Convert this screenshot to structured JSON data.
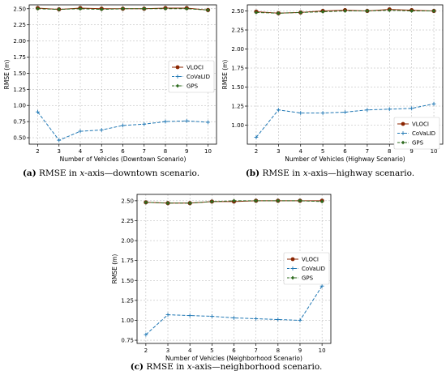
{
  "chart_data": [
    {
      "type": "line",
      "x": [
        2,
        3,
        4,
        5,
        6,
        7,
        8,
        9,
        10
      ],
      "xlabel": "Number of Vehicles (Downtown Scenario)",
      "ylabel": "RMSE (m)",
      "xlim": [
        1.6,
        10.4
      ],
      "ylim": [
        0.4,
        2.56
      ],
      "yticks": [
        "0.50",
        "0.75",
        "1.00",
        "1.25",
        "1.50",
        "1.75",
        "2.00",
        "2.25",
        "2.50"
      ],
      "grid": true,
      "legend_position": "center-right",
      "series": [
        {
          "name": "VLOCI",
          "color": "#8b2500",
          "marker": "circle",
          "values": [
            2.51,
            2.49,
            2.51,
            2.5,
            2.5,
            2.5,
            2.51,
            2.51,
            2.48
          ]
        },
        {
          "name": "CoVaLID",
          "color": "#1f77b4",
          "marker": "plus",
          "style": "dashed",
          "values": [
            0.9,
            0.46,
            0.6,
            0.62,
            0.69,
            0.71,
            0.75,
            0.76,
            0.74
          ]
        },
        {
          "name": "GPS",
          "color": "#2e6b1f",
          "marker": "diamond",
          "style": "dashed",
          "values": [
            2.5,
            2.49,
            2.5,
            2.49,
            2.5,
            2.5,
            2.5,
            2.5,
            2.48
          ]
        }
      ],
      "caption": {
        "label": "(a)",
        "pre": " RMSE in ",
        "var": "x",
        "post": "-axis—downtown scenario."
      }
    },
    {
      "type": "line",
      "x": [
        2,
        3,
        4,
        5,
        6,
        7,
        8,
        9,
        10
      ],
      "xlabel": "Number of Vehicles (Highway Scenario)",
      "ylabel": "RMSE (m)",
      "xlim": [
        1.6,
        10.4
      ],
      "ylim": [
        0.75,
        2.58
      ],
      "yticks": [
        "1.00",
        "1.25",
        "1.50",
        "1.75",
        "2.00",
        "2.25",
        "2.50"
      ],
      "grid": true,
      "legend_position": "bottom-right",
      "series": [
        {
          "name": "VLOCI",
          "color": "#8b2500",
          "marker": "circle",
          "values": [
            2.49,
            2.47,
            2.48,
            2.5,
            2.51,
            2.5,
            2.52,
            2.51,
            2.5
          ]
        },
        {
          "name": "CoVaLID",
          "color": "#1f77b4",
          "marker": "plus",
          "style": "dashed",
          "values": [
            0.84,
            1.2,
            1.16,
            1.16,
            1.17,
            1.2,
            1.21,
            1.22,
            1.28
          ]
        },
        {
          "name": "GPS",
          "color": "#2e6b1f",
          "marker": "diamond",
          "style": "dashed",
          "values": [
            2.48,
            2.47,
            2.48,
            2.49,
            2.5,
            2.5,
            2.51,
            2.5,
            2.5
          ]
        }
      ],
      "caption": {
        "label": "(b)",
        "pre": " RMSE in ",
        "var": "x",
        "post": "-axis—highway scenario."
      }
    },
    {
      "type": "line",
      "x": [
        2,
        3,
        4,
        5,
        6,
        7,
        8,
        9,
        10
      ],
      "xlabel": "Number of Vehicles (Neighborhood Scenario)",
      "ylabel": "RMSE (m)",
      "xlim": [
        1.6,
        10.4
      ],
      "ylim": [
        0.71,
        2.58
      ],
      "yticks": [
        "0.75",
        "1.00",
        "1.25",
        "1.50",
        "1.75",
        "2.00",
        "2.25",
        "2.50"
      ],
      "grid": true,
      "legend_position": "center-right",
      "series": [
        {
          "name": "VLOCI",
          "color": "#8b2500",
          "marker": "circle",
          "values": [
            2.48,
            2.47,
            2.47,
            2.49,
            2.49,
            2.5,
            2.5,
            2.5,
            2.5
          ]
        },
        {
          "name": "CoVaLID",
          "color": "#1f77b4",
          "marker": "plus",
          "style": "dashed",
          "values": [
            0.82,
            1.07,
            1.06,
            1.05,
            1.03,
            1.02,
            1.01,
            1.0,
            1.43
          ]
        },
        {
          "name": "GPS",
          "color": "#2e6b1f",
          "marker": "diamond",
          "style": "dashed",
          "values": [
            2.48,
            2.47,
            2.47,
            2.49,
            2.5,
            2.5,
            2.5,
            2.5,
            2.49
          ]
        }
      ],
      "caption": {
        "label": "(c)",
        "pre": " RMSE in ",
        "var": "x",
        "post": "-axis—neighborhood scenario."
      }
    }
  ]
}
